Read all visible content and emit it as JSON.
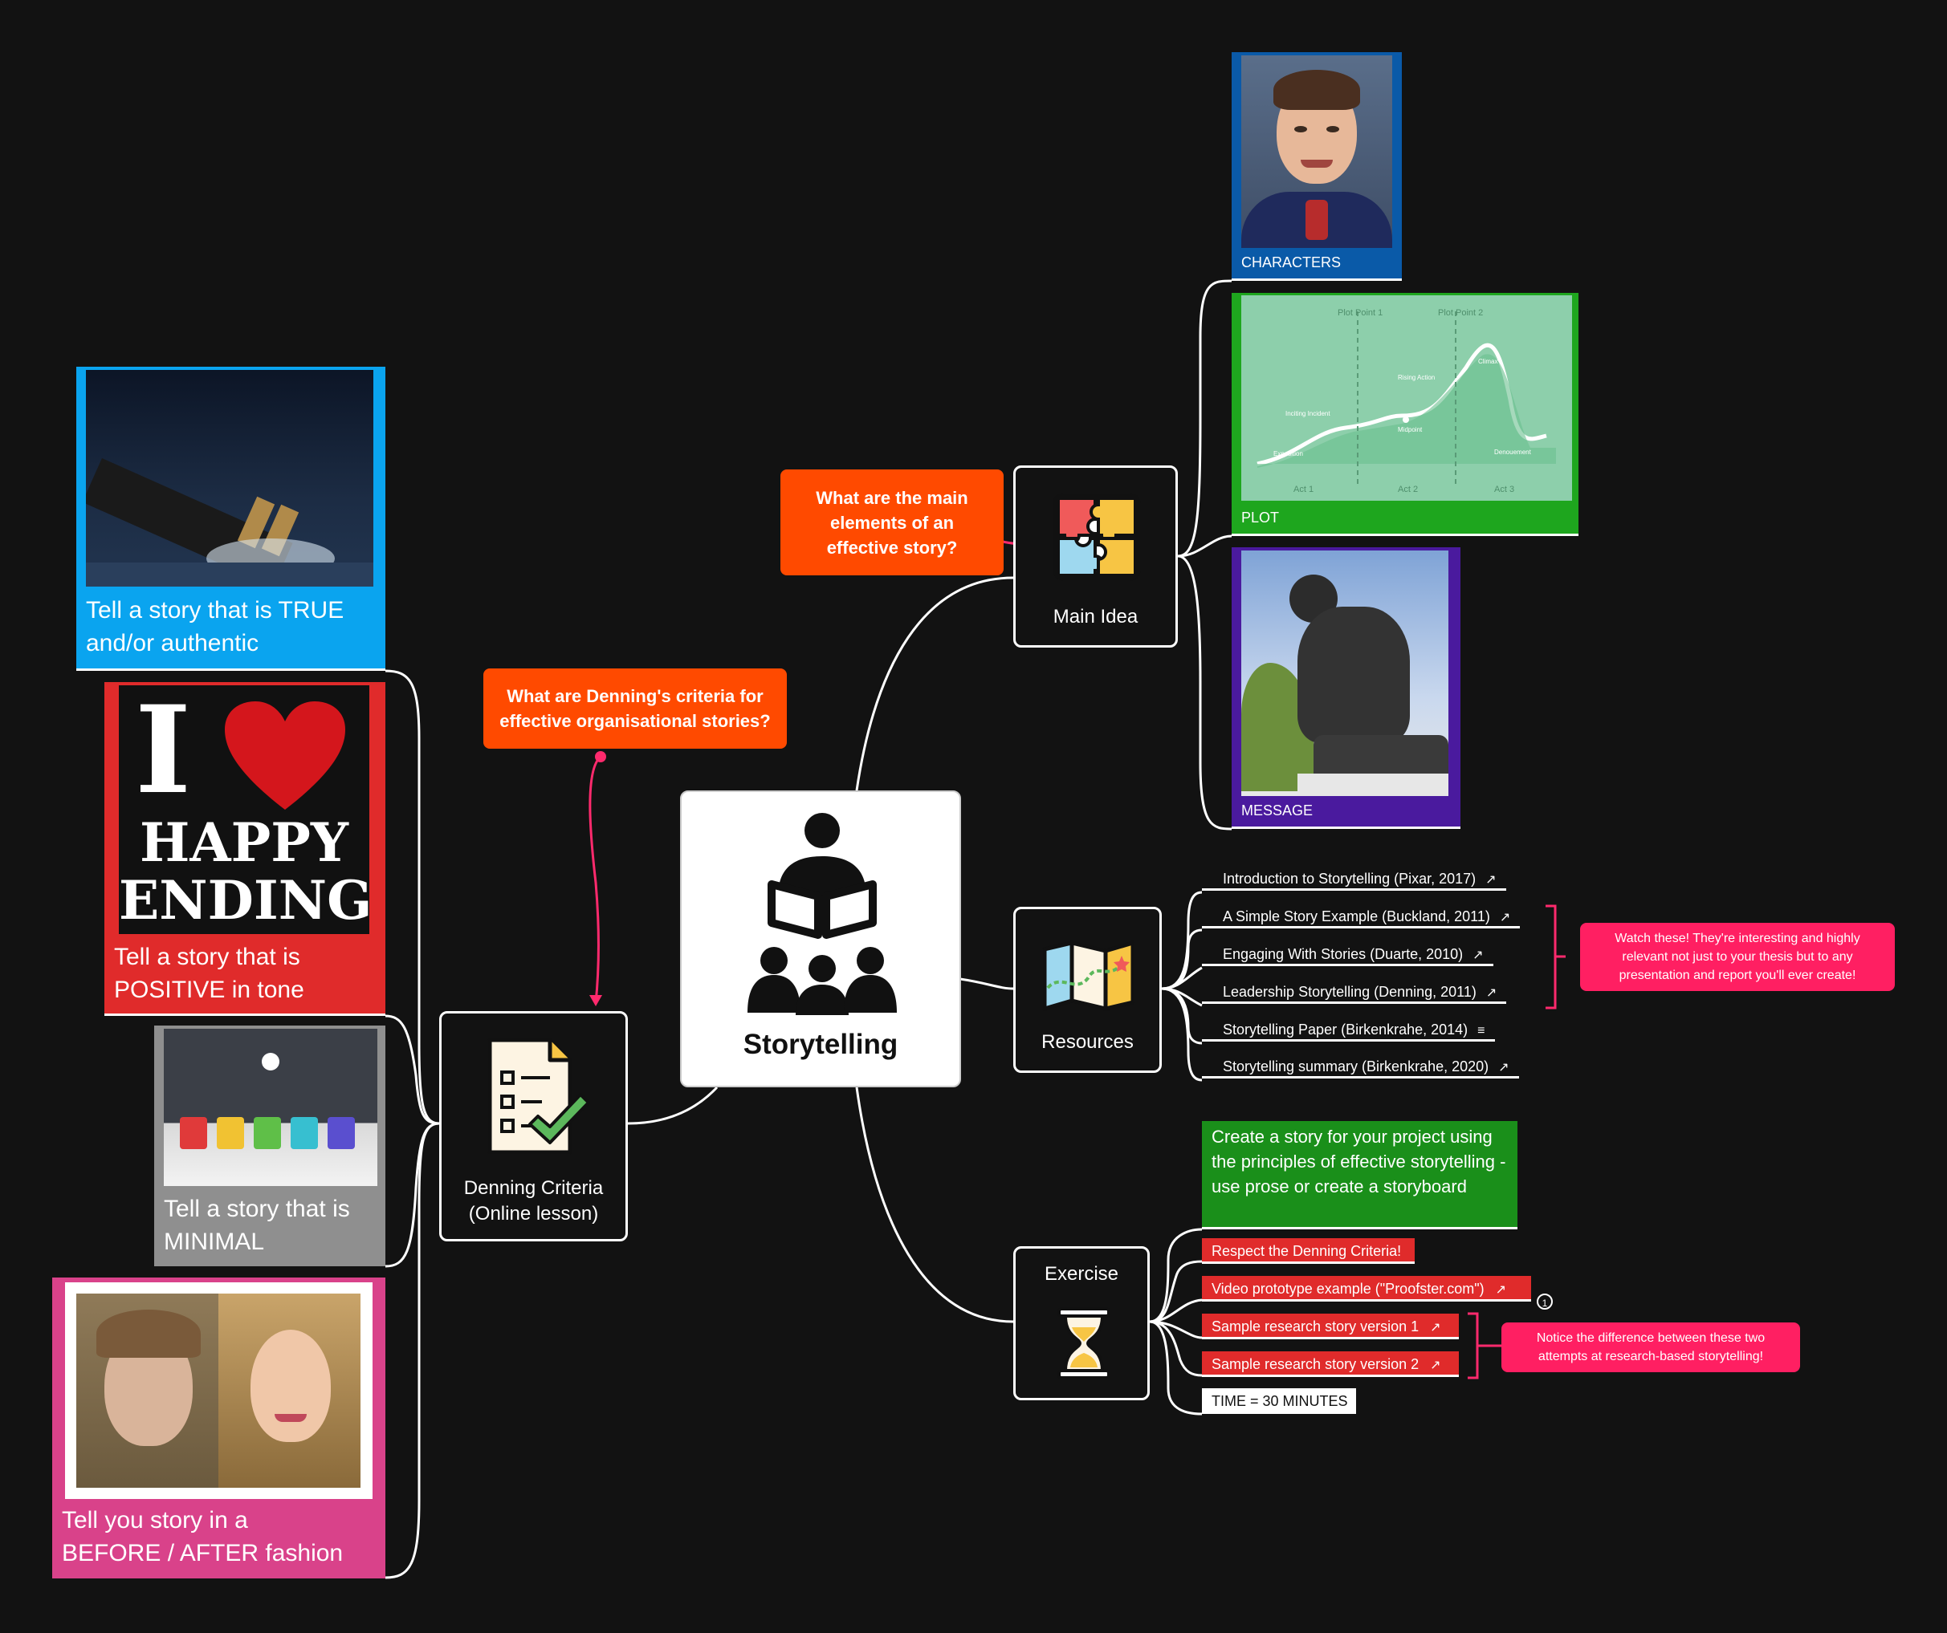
{
  "central": {
    "label": "Storytelling",
    "icon": "storyteller-audience-icon"
  },
  "main_idea": {
    "label": "Main Idea",
    "icon": "puzzle-icon",
    "question": "What are the main elements of an effective story?",
    "children": [
      {
        "caption": "CHARACTERS",
        "color": "#0a5aa8"
      },
      {
        "caption": "PLOT",
        "color": "#1ea61e",
        "plot_diagram": {
          "top_labels": [
            "Plot Point 1",
            "Plot Point 2"
          ],
          "curve_labels": [
            "Rising Action",
            "Climax",
            "Inciting Incident",
            "Midpoint",
            "Exposition",
            "Denouement"
          ],
          "acts": [
            "Act 1",
            "Act 2",
            "Act 3"
          ]
        }
      },
      {
        "caption": "MESSAGE",
        "color": "#4a1a9e"
      }
    ]
  },
  "denning": {
    "label_line1": "Denning Criteria",
    "label_line2": "(Online lesson)",
    "icon": "checklist-icon",
    "question": "What are Denning's criteria for effective organisational stories?",
    "children": [
      {
        "caption_line1": "Tell a story that is TRUE",
        "caption_line2": "and/or authentic",
        "color": "#0aa4ef"
      },
      {
        "caption_line1": "Tell a story that is",
        "caption_line2": "POSITIVE in tone",
        "color": "#e02b2b",
        "poster": {
          "big": "I",
          "line1": "HAPPY",
          "line2": "ENDING"
        }
      },
      {
        "caption_line1": "Tell a story that is",
        "caption_line2": "MINIMAL",
        "color": "#8f8f8f"
      },
      {
        "caption_line1": "Tell you story in a",
        "caption_line2": "BEFORE / AFTER fashion",
        "color": "#d9428a"
      }
    ]
  },
  "resources": {
    "label": "Resources",
    "icon": "map-icon",
    "items": [
      {
        "text": "Introduction to Storytelling (Pixar, 2017)",
        "icon": "external-link-icon",
        "glyph": "↗"
      },
      {
        "text": "A Simple Story Example (Buckland, 2011)",
        "icon": "external-link-icon",
        "glyph": "↗"
      },
      {
        "text": "Engaging With Stories (Duarte, 2010)",
        "icon": "external-link-icon",
        "glyph": "↗"
      },
      {
        "text": "Leadership Storytelling (Denning, 2011)",
        "icon": "external-link-icon",
        "glyph": "↗"
      },
      {
        "text": "Storytelling Paper (Birkenkrahe, 2014)",
        "icon": "notes-icon",
        "glyph": "≡"
      },
      {
        "text": "Storytelling summary (Birkenkrahe, 2020)",
        "icon": "external-link-icon",
        "glyph": "↗"
      }
    ],
    "note": "Watch these! They're interesting and highly relevant not just to your thesis but to any presentation and report you'll ever create!"
  },
  "exercise": {
    "label": "Exercise",
    "icon": "hourglass-icon",
    "task": "Create a story for your project using  the principles of effective storytelling - use prose or create a storyboard",
    "items": [
      {
        "text": "Respect the Denning Criteria!",
        "glyph": ""
      },
      {
        "text": "Video prototype example (\"Proofster.com\")",
        "glyph": "↗"
      },
      {
        "text": "Sample research story version 1",
        "glyph": "↗"
      },
      {
        "text": "Sample research story version 2",
        "glyph": "↗"
      }
    ],
    "badge": "1",
    "time": "TIME = 30 MINUTES",
    "note": "Notice the difference between these two attempts at research-based storytelling!"
  },
  "colors": {
    "background": "#121212",
    "callout": "#ff4a00",
    "note": "#ff1f62",
    "link": "#ffffff",
    "arrow": "#ff2a6d"
  }
}
